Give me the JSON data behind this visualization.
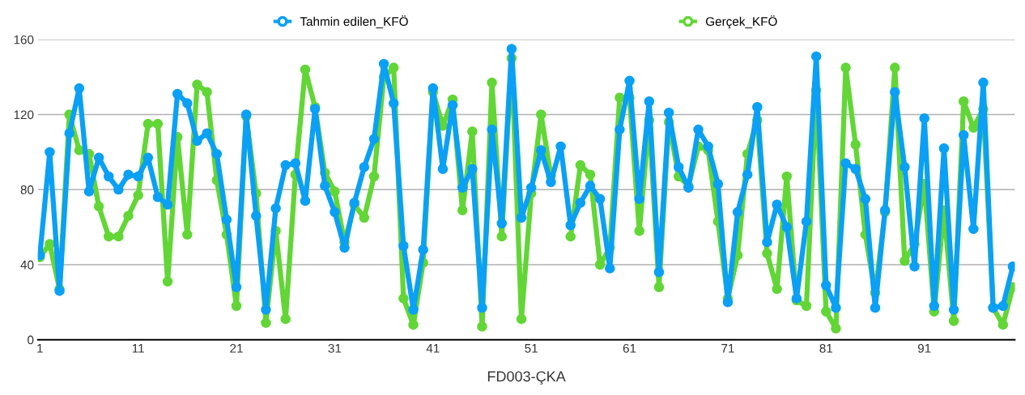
{
  "chart_data": {
    "type": "line",
    "xlabel": "FD003-ÇKA",
    "categories": [
      "1",
      null,
      null,
      null,
      null,
      null,
      null,
      null,
      null,
      null,
      "11",
      null,
      null,
      null,
      null,
      null,
      null,
      null,
      null,
      null,
      "21",
      null,
      null,
      null,
      null,
      null,
      null,
      null,
      null,
      null,
      "31",
      null,
      null,
      null,
      null,
      null,
      null,
      null,
      null,
      null,
      "41",
      null,
      null,
      null,
      null,
      null,
      null,
      null,
      null,
      null,
      "51",
      null,
      null,
      null,
      null,
      null,
      null,
      null,
      null,
      null,
      "61",
      null,
      null,
      null,
      null,
      null,
      null,
      null,
      null,
      null,
      "71",
      null,
      null,
      null,
      null,
      null,
      null,
      null,
      null,
      null,
      "81",
      null,
      null,
      null,
      null,
      null,
      null,
      null,
      null,
      null,
      "91",
      null,
      null,
      null,
      null,
      null,
      null,
      null,
      null,
      null
    ],
    "series": [
      {
        "name": "Tahmin edilen_KFÖ",
        "color": "#0aa0f5",
        "values": [
          45,
          100,
          26,
          110,
          134,
          79,
          97,
          87,
          80,
          88,
          87,
          97,
          76,
          72,
          131,
          126,
          106,
          110,
          99,
          64,
          28,
          120,
          66,
          16,
          70,
          93,
          94,
          74,
          123,
          82,
          68,
          49,
          73,
          92,
          107,
          147,
          126,
          50,
          16,
          48,
          134,
          91,
          125,
          81,
          91,
          17,
          112,
          62,
          155,
          65,
          81,
          101,
          84,
          103,
          61,
          73,
          82,
          75,
          38,
          112,
          138,
          75,
          127,
          36,
          121,
          92,
          81,
          112,
          103,
          83,
          20,
          68,
          88,
          124,
          52,
          72,
          60,
          22,
          63,
          151,
          29,
          17,
          94,
          91,
          75,
          17,
          69,
          132,
          92,
          39,
          118,
          18,
          102,
          16,
          109,
          59,
          137,
          17,
          18,
          39
        ]
      },
      {
        "name": "Gerçek_KFÖ",
        "color": "#62d636",
        "values": [
          44,
          51,
          27,
          120,
          101,
          99,
          71,
          55,
          55,
          66,
          77,
          115,
          115,
          31,
          108,
          56,
          136,
          132,
          85,
          56,
          18,
          119,
          78,
          9,
          58,
          11,
          88,
          144,
          124,
          89,
          79,
          52,
          72,
          65,
          87,
          140,
          145,
          22,
          8,
          41,
          132,
          114,
          128,
          69,
          111,
          7,
          137,
          55,
          150,
          11,
          78,
          120,
          87,
          null,
          55,
          93,
          88,
          40,
          49,
          129,
          129,
          58,
          117,
          28,
          116,
          87,
          82,
          103,
          101,
          63,
          22,
          45,
          99,
          117,
          46,
          27,
          87,
          21,
          18,
          133,
          15,
          6,
          145,
          104,
          56,
          25,
          68,
          145,
          42,
          51,
          83,
          15,
          69,
          10,
          127,
          113,
          123,
          17,
          8,
          28
        ]
      }
    ],
    "ylim": [
      0,
      160
    ],
    "yticks": [
      0,
      40,
      80,
      120,
      160
    ],
    "grid": "y",
    "legend": "top",
    "marker": "circle",
    "line_style": "solid"
  }
}
